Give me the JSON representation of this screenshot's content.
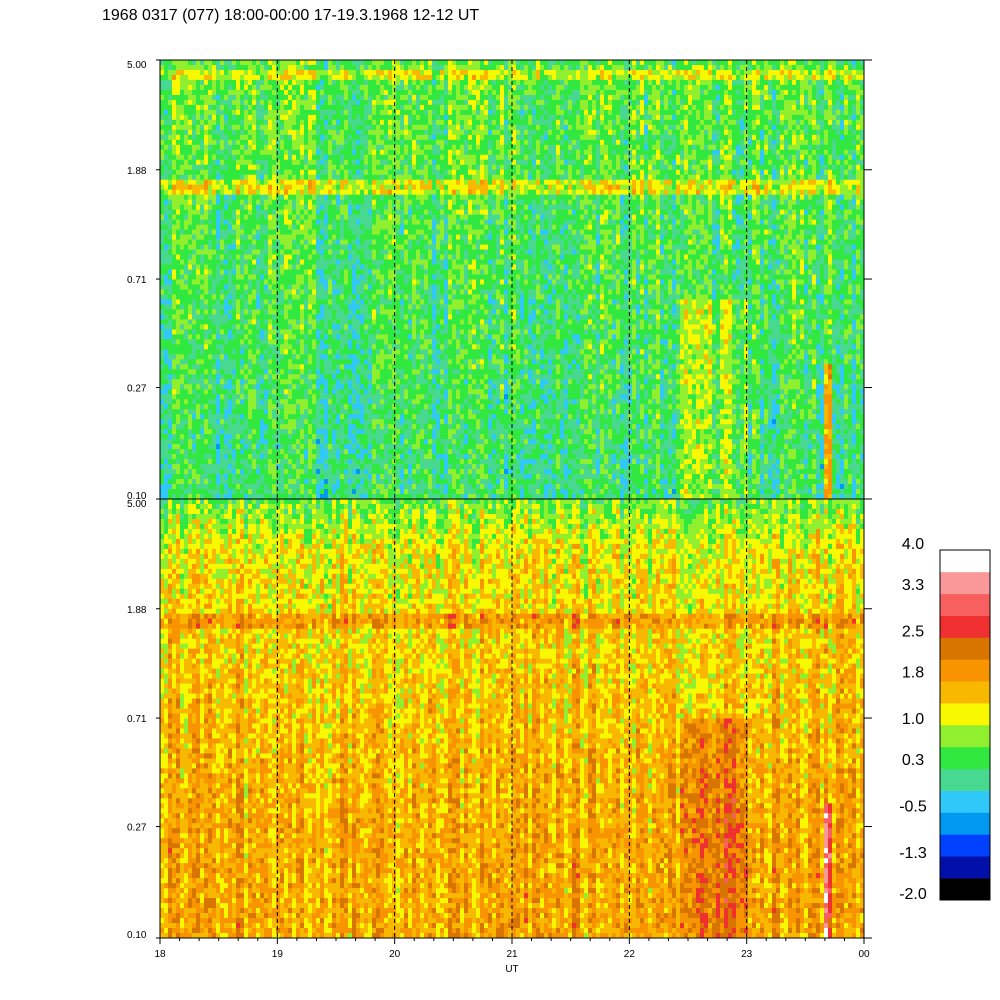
{
  "chart_data": {
    "type": "heatmap",
    "title": "1968 0317 (077) 18:00-00:00 17-19.3.1968  12-12 UT",
    "xlabel": "UT",
    "x_ticks": [
      "18",
      "19",
      "20",
      "21",
      "22",
      "23",
      "00"
    ],
    "x_range_hours": [
      18,
      24
    ],
    "y_scale": "log",
    "y_ticks": [
      "5.00",
      "1.88",
      "0.71",
      "0.27",
      "0.10"
    ],
    "y_range": [
      0.1,
      5.0
    ],
    "panels": [
      {
        "name": "upper",
        "y_ticks": [
          "5.00",
          "1.88",
          "0.71",
          "0.27",
          "0.10"
        ],
        "typical_level_low": 0.0,
        "typical_level_high": 1.0
      },
      {
        "name": "lower",
        "y_ticks": [
          "5.00",
          "1.88",
          "0.71",
          "0.27",
          "0.10"
        ],
        "typical_level_low": 1.0,
        "typical_level_high": 2.0
      }
    ],
    "colorbar": {
      "labels": [
        "4.0",
        "3.3",
        "2.5",
        "1.8",
        "1.0",
        "0.3",
        "-0.5",
        "-1.3",
        "-2.0"
      ],
      "range": [
        -2.0,
        4.0
      ],
      "colors": [
        "#000000",
        "#0010a8",
        "#0040ff",
        "#0098f0",
        "#30c8f8",
        "#48d890",
        "#30e840",
        "#90f030",
        "#f8f800",
        "#f8b800",
        "#f89400",
        "#d87400",
        "#f03030",
        "#f86060",
        "#f89898",
        "#ffffff"
      ]
    },
    "grid": "dashed vertical lines at each hour"
  }
}
